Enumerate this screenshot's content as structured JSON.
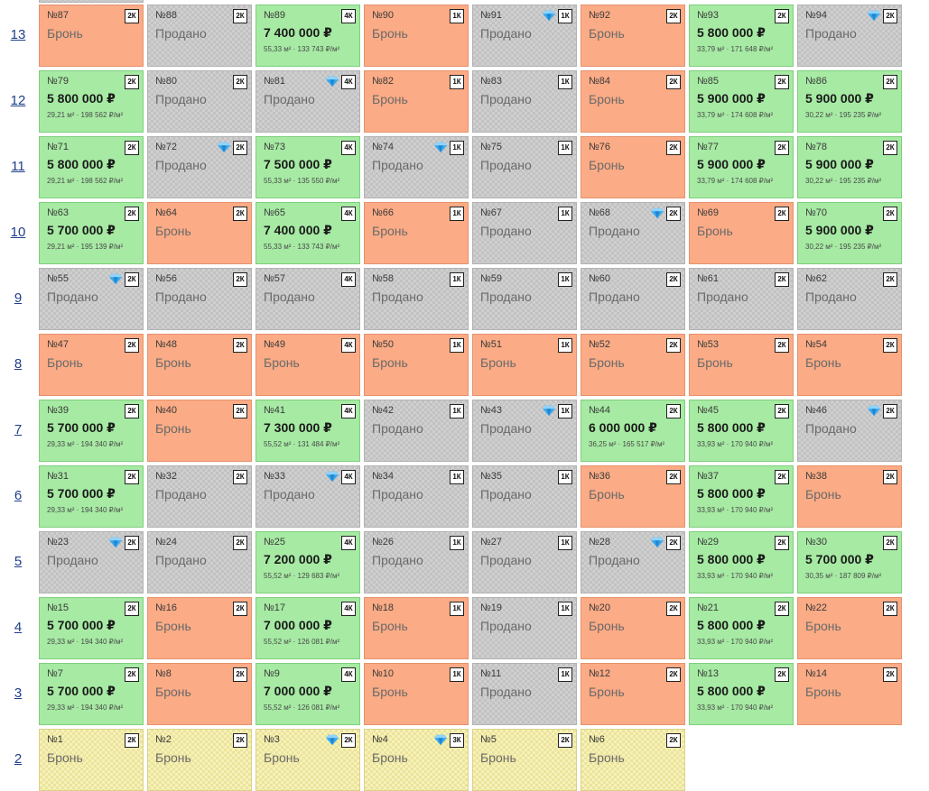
{
  "floors": [
    {
      "label": "13",
      "units": [
        {
          "num": "№87",
          "type": "2К",
          "status": "reserved",
          "text": "Бронь",
          "diamond": false
        },
        {
          "num": "№88",
          "type": "2К",
          "status": "sold",
          "text": "Продано",
          "diamond": false
        },
        {
          "num": "№89",
          "type": "4К",
          "status": "available",
          "price": "7 400 000 ₽",
          "info": "55,33 м² · 133 743 ₽/м²",
          "diamond": false
        },
        {
          "num": "№90",
          "type": "1К",
          "status": "reserved",
          "text": "Бронь",
          "diamond": false
        },
        {
          "num": "№91",
          "type": "1К",
          "status": "sold",
          "text": "Продано",
          "diamond": true
        },
        {
          "num": "№92",
          "type": "2К",
          "status": "reserved",
          "text": "Бронь",
          "diamond": false
        },
        {
          "num": "№93",
          "type": "2К",
          "status": "available",
          "price": "5 800 000 ₽",
          "info": "33,79 м² · 171 648 ₽/м²",
          "diamond": false
        },
        {
          "num": "№94",
          "type": "2К",
          "status": "sold",
          "text": "Продано",
          "diamond": true
        }
      ]
    },
    {
      "label": "12",
      "units": [
        {
          "num": "№79",
          "type": "2К",
          "status": "available",
          "price": "5 800 000 ₽",
          "info": "29,21 м² · 198 562 ₽/м²",
          "diamond": false
        },
        {
          "num": "№80",
          "type": "2К",
          "status": "sold",
          "text": "Продано",
          "diamond": false
        },
        {
          "num": "№81",
          "type": "4К",
          "status": "sold",
          "text": "Продано",
          "diamond": true
        },
        {
          "num": "№82",
          "type": "1К",
          "status": "reserved",
          "text": "Бронь",
          "diamond": false
        },
        {
          "num": "№83",
          "type": "1К",
          "status": "sold",
          "text": "Продано",
          "diamond": false
        },
        {
          "num": "№84",
          "type": "2К",
          "status": "reserved",
          "text": "Бронь",
          "diamond": false
        },
        {
          "num": "№85",
          "type": "2К",
          "status": "available",
          "price": "5 900 000 ₽",
          "info": "33,79 м² · 174 608 ₽/м²",
          "diamond": false
        },
        {
          "num": "№86",
          "type": "2К",
          "status": "available",
          "price": "5 900 000 ₽",
          "info": "30,22 м² · 195 235 ₽/м²",
          "diamond": false
        }
      ]
    },
    {
      "label": "11",
      "units": [
        {
          "num": "№71",
          "type": "2К",
          "status": "available",
          "price": "5 800 000 ₽",
          "info": "29,21 м² · 198 562 ₽/м²",
          "diamond": false
        },
        {
          "num": "№72",
          "type": "2К",
          "status": "sold",
          "text": "Продано",
          "diamond": true
        },
        {
          "num": "№73",
          "type": "4К",
          "status": "available",
          "price": "7 500 000 ₽",
          "info": "55,33 м² · 135 550 ₽/м²",
          "diamond": false
        },
        {
          "num": "№74",
          "type": "1К",
          "status": "sold",
          "text": "Продано",
          "diamond": true
        },
        {
          "num": "№75",
          "type": "1К",
          "status": "sold",
          "text": "Продано",
          "diamond": false
        },
        {
          "num": "№76",
          "type": "2К",
          "status": "reserved",
          "text": "Бронь",
          "diamond": false
        },
        {
          "num": "№77",
          "type": "2К",
          "status": "available",
          "price": "5 900 000 ₽",
          "info": "33,79 м² · 174 608 ₽/м²",
          "diamond": false
        },
        {
          "num": "№78",
          "type": "2К",
          "status": "available",
          "price": "5 900 000 ₽",
          "info": "30,22 м² · 195 235 ₽/м²",
          "diamond": false
        }
      ]
    },
    {
      "label": "10",
      "units": [
        {
          "num": "№63",
          "type": "2К",
          "status": "available",
          "price": "5 700 000 ₽",
          "info": "29,21 м² · 195 139 ₽/м²",
          "diamond": false
        },
        {
          "num": "№64",
          "type": "2К",
          "status": "reserved",
          "text": "Бронь",
          "diamond": false
        },
        {
          "num": "№65",
          "type": "4К",
          "status": "available",
          "price": "7 400 000 ₽",
          "info": "55,33 м² · 133 743 ₽/м²",
          "diamond": false
        },
        {
          "num": "№66",
          "type": "1К",
          "status": "reserved",
          "text": "Бронь",
          "diamond": false
        },
        {
          "num": "№67",
          "type": "1К",
          "status": "sold",
          "text": "Продано",
          "diamond": false
        },
        {
          "num": "№68",
          "type": "2К",
          "status": "sold",
          "text": "Продано",
          "diamond": true
        },
        {
          "num": "№69",
          "type": "2К",
          "status": "reserved",
          "text": "Бронь",
          "diamond": false
        },
        {
          "num": "№70",
          "type": "2К",
          "status": "available",
          "price": "5 900 000 ₽",
          "info": "30,22 м² · 195 235 ₽/м²",
          "diamond": false
        }
      ]
    },
    {
      "label": "9",
      "units": [
        {
          "num": "№55",
          "type": "2К",
          "status": "sold",
          "text": "Продано",
          "diamond": true
        },
        {
          "num": "№56",
          "type": "2К",
          "status": "sold",
          "text": "Продано",
          "diamond": false
        },
        {
          "num": "№57",
          "type": "4К",
          "status": "sold",
          "text": "Продано",
          "diamond": false
        },
        {
          "num": "№58",
          "type": "1К",
          "status": "sold",
          "text": "Продано",
          "diamond": false
        },
        {
          "num": "№59",
          "type": "1К",
          "status": "sold",
          "text": "Продано",
          "diamond": false
        },
        {
          "num": "№60",
          "type": "2К",
          "status": "sold",
          "text": "Продано",
          "diamond": false
        },
        {
          "num": "№61",
          "type": "2К",
          "status": "sold",
          "text": "Продано",
          "diamond": false
        },
        {
          "num": "№62",
          "type": "2К",
          "status": "sold",
          "text": "Продано",
          "diamond": false
        }
      ]
    },
    {
      "label": "8",
      "units": [
        {
          "num": "№47",
          "type": "2К",
          "status": "reserved",
          "text": "Бронь",
          "diamond": false
        },
        {
          "num": "№48",
          "type": "2К",
          "status": "reserved",
          "text": "Бронь",
          "diamond": false
        },
        {
          "num": "№49",
          "type": "4К",
          "status": "reserved",
          "text": "Бронь",
          "diamond": false
        },
        {
          "num": "№50",
          "type": "1К",
          "status": "reserved",
          "text": "Бронь",
          "diamond": false
        },
        {
          "num": "№51",
          "type": "1К",
          "status": "reserved",
          "text": "Бронь",
          "diamond": false
        },
        {
          "num": "№52",
          "type": "2К",
          "status": "reserved",
          "text": "Бронь",
          "diamond": false
        },
        {
          "num": "№53",
          "type": "2К",
          "status": "reserved",
          "text": "Бронь",
          "diamond": false
        },
        {
          "num": "№54",
          "type": "2К",
          "status": "reserved",
          "text": "Бронь",
          "diamond": false
        }
      ]
    },
    {
      "label": "7",
      "units": [
        {
          "num": "№39",
          "type": "2К",
          "status": "available",
          "price": "5 700 000 ₽",
          "info": "29,33 м² · 194 340 ₽/м²",
          "diamond": false
        },
        {
          "num": "№40",
          "type": "2К",
          "status": "reserved",
          "text": "Бронь",
          "diamond": false
        },
        {
          "num": "№41",
          "type": "4К",
          "status": "available",
          "price": "7 300 000 ₽",
          "info": "55,52 м² · 131 484 ₽/м²",
          "diamond": false
        },
        {
          "num": "№42",
          "type": "1К",
          "status": "sold",
          "text": "Продано",
          "diamond": false
        },
        {
          "num": "№43",
          "type": "1К",
          "status": "sold",
          "text": "Продано",
          "diamond": true
        },
        {
          "num": "№44",
          "type": "2К",
          "status": "available",
          "price": "6 000 000 ₽",
          "info": "36,25 м² · 165 517 ₽/м²",
          "diamond": false
        },
        {
          "num": "№45",
          "type": "2К",
          "status": "available",
          "price": "5 800 000 ₽",
          "info": "33,93 м² · 170 940 ₽/м²",
          "diamond": false
        },
        {
          "num": "№46",
          "type": "2К",
          "status": "sold",
          "text": "Продано",
          "diamond": true
        }
      ]
    },
    {
      "label": "6",
      "units": [
        {
          "num": "№31",
          "type": "2К",
          "status": "available",
          "price": "5 700 000 ₽",
          "info": "29,33 м² · 194 340 ₽/м²",
          "diamond": false
        },
        {
          "num": "№32",
          "type": "2К",
          "status": "sold",
          "text": "Продано",
          "diamond": false
        },
        {
          "num": "№33",
          "type": "4К",
          "status": "sold",
          "text": "Продано",
          "diamond": true
        },
        {
          "num": "№34",
          "type": "1К",
          "status": "sold",
          "text": "Продано",
          "diamond": false
        },
        {
          "num": "№35",
          "type": "1К",
          "status": "sold",
          "text": "Продано",
          "diamond": false
        },
        {
          "num": "№36",
          "type": "2К",
          "status": "reserved",
          "text": "Бронь",
          "diamond": false
        },
        {
          "num": "№37",
          "type": "2К",
          "status": "available",
          "price": "5 800 000 ₽",
          "info": "33,93 м² · 170 940 ₽/м²",
          "diamond": false
        },
        {
          "num": "№38",
          "type": "2К",
          "status": "reserved",
          "text": "Бронь",
          "diamond": false
        }
      ]
    },
    {
      "label": "5",
      "units": [
        {
          "num": "№23",
          "type": "2К",
          "status": "sold",
          "text": "Продано",
          "diamond": true
        },
        {
          "num": "№24",
          "type": "2К",
          "status": "sold",
          "text": "Продано",
          "diamond": false
        },
        {
          "num": "№25",
          "type": "4К",
          "status": "available",
          "price": "7 200 000 ₽",
          "info": "55,52 м² · 129 683 ₽/м²",
          "diamond": false
        },
        {
          "num": "№26",
          "type": "1К",
          "status": "sold",
          "text": "Продано",
          "diamond": false
        },
        {
          "num": "№27",
          "type": "1К",
          "status": "sold",
          "text": "Продано",
          "diamond": false
        },
        {
          "num": "№28",
          "type": "2К",
          "status": "sold",
          "text": "Продано",
          "diamond": true
        },
        {
          "num": "№29",
          "type": "2К",
          "status": "available",
          "price": "5 800 000 ₽",
          "info": "33,93 м² · 170 940 ₽/м²",
          "diamond": false
        },
        {
          "num": "№30",
          "type": "2К",
          "status": "available",
          "price": "5 700 000 ₽",
          "info": "30,35 м² · 187 809 ₽/м²",
          "diamond": false
        }
      ]
    },
    {
      "label": "4",
      "units": [
        {
          "num": "№15",
          "type": "2К",
          "status": "available",
          "price": "5 700 000 ₽",
          "info": "29,33 м² · 194 340 ₽/м²",
          "diamond": false
        },
        {
          "num": "№16",
          "type": "2К",
          "status": "reserved",
          "text": "Бронь",
          "diamond": false
        },
        {
          "num": "№17",
          "type": "4К",
          "status": "available",
          "price": "7 000 000 ₽",
          "info": "55,52 м² · 126 081 ₽/м²",
          "diamond": false
        },
        {
          "num": "№18",
          "type": "1К",
          "status": "reserved",
          "text": "Бронь",
          "diamond": false
        },
        {
          "num": "№19",
          "type": "1К",
          "status": "sold",
          "text": "Продано",
          "diamond": false
        },
        {
          "num": "№20",
          "type": "2К",
          "status": "reserved",
          "text": "Бронь",
          "diamond": false
        },
        {
          "num": "№21",
          "type": "2К",
          "status": "available",
          "price": "5 800 000 ₽",
          "info": "33,93 м² · 170 940 ₽/м²",
          "diamond": false
        },
        {
          "num": "№22",
          "type": "2К",
          "status": "reserved",
          "text": "Бронь",
          "diamond": false
        }
      ]
    },
    {
      "label": "3",
      "units": [
        {
          "num": "№7",
          "type": "2К",
          "status": "available",
          "price": "5 700 000 ₽",
          "info": "29,33 м² · 194 340 ₽/м²",
          "diamond": false
        },
        {
          "num": "№8",
          "type": "2К",
          "status": "reserved",
          "text": "Бронь",
          "diamond": false
        },
        {
          "num": "№9",
          "type": "4К",
          "status": "available",
          "price": "7 000 000 ₽",
          "info": "55,52 м² · 126 081 ₽/м²",
          "diamond": false
        },
        {
          "num": "№10",
          "type": "1К",
          "status": "reserved",
          "text": "Бронь",
          "diamond": false
        },
        {
          "num": "№11",
          "type": "1К",
          "status": "sold",
          "text": "Продано",
          "diamond": false
        },
        {
          "num": "№12",
          "type": "2К",
          "status": "reserved",
          "text": "Бронь",
          "diamond": false
        },
        {
          "num": "№13",
          "type": "2К",
          "status": "available",
          "price": "5 800 000 ₽",
          "info": "33,93 м² · 170 940 ₽/м²",
          "diamond": false
        },
        {
          "num": "№14",
          "type": "2К",
          "status": "reserved",
          "text": "Бронь",
          "diamond": false
        }
      ]
    },
    {
      "label": "2",
      "units": [
        {
          "num": "№1",
          "type": "2К",
          "status": "yellow",
          "text": "Бронь",
          "diamond": false
        },
        {
          "num": "№2",
          "type": "2К",
          "status": "yellow",
          "text": "Бронь",
          "diamond": false
        },
        {
          "num": "№3",
          "type": "2К",
          "status": "yellow",
          "text": "Бронь",
          "diamond": true
        },
        {
          "num": "№4",
          "type": "3К",
          "status": "yellow",
          "text": "Бронь",
          "diamond": true
        },
        {
          "num": "№5",
          "type": "2К",
          "status": "yellow",
          "text": "Бронь",
          "diamond": false
        },
        {
          "num": "№6",
          "type": "2К",
          "status": "yellow",
          "text": "Бронь",
          "diamond": false
        }
      ]
    }
  ],
  "colors": {
    "available": "#a6eaa3",
    "reserved": "#fbab85",
    "sold": "#cfcfcf",
    "yellow": "#f6f1ba",
    "floor_link": "#1f3f8a",
    "diamond": "#38a8ee"
  }
}
